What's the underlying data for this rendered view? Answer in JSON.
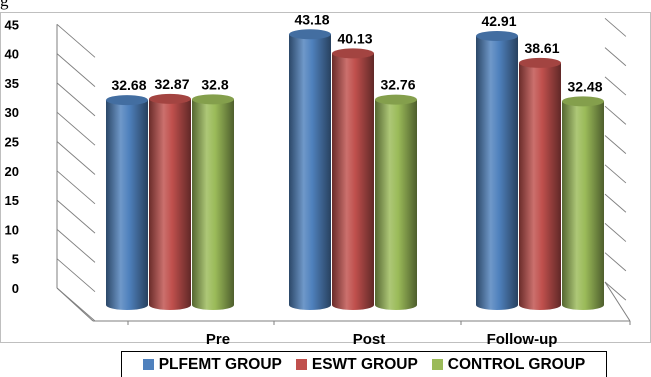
{
  "page": {
    "top_text_fragment": "g"
  },
  "chart_data": {
    "type": "bar",
    "style": "3d-cylinder",
    "title": "",
    "xlabel": "",
    "ylabel": "",
    "ylim": [
      0,
      45
    ],
    "y_ticks": [
      0,
      5,
      10,
      15,
      20,
      25,
      30,
      35,
      40,
      45
    ],
    "categories": [
      "Pre",
      "Post",
      "Follow-up"
    ],
    "series": [
      {
        "name": "PLFEMT GROUP",
        "color": "#4f81bd",
        "values": [
          32.68,
          43.18,
          42.91
        ]
      },
      {
        "name": "ESWT GROUP",
        "color": "#c0504d",
        "values": [
          32.87,
          40.13,
          38.61
        ]
      },
      {
        "name": "CONTROL GROUP",
        "color": "#9bbb59",
        "values": [
          32.8,
          32.76,
          32.48
        ]
      }
    ],
    "data_labels": [
      [
        "32.68",
        "43.18",
        "42.91"
      ],
      [
        "32.87",
        "40.13",
        "38.61"
      ],
      [
        "32.8",
        "32.76",
        "32.48"
      ]
    ],
    "grid": true,
    "legend_position": "bottom"
  }
}
